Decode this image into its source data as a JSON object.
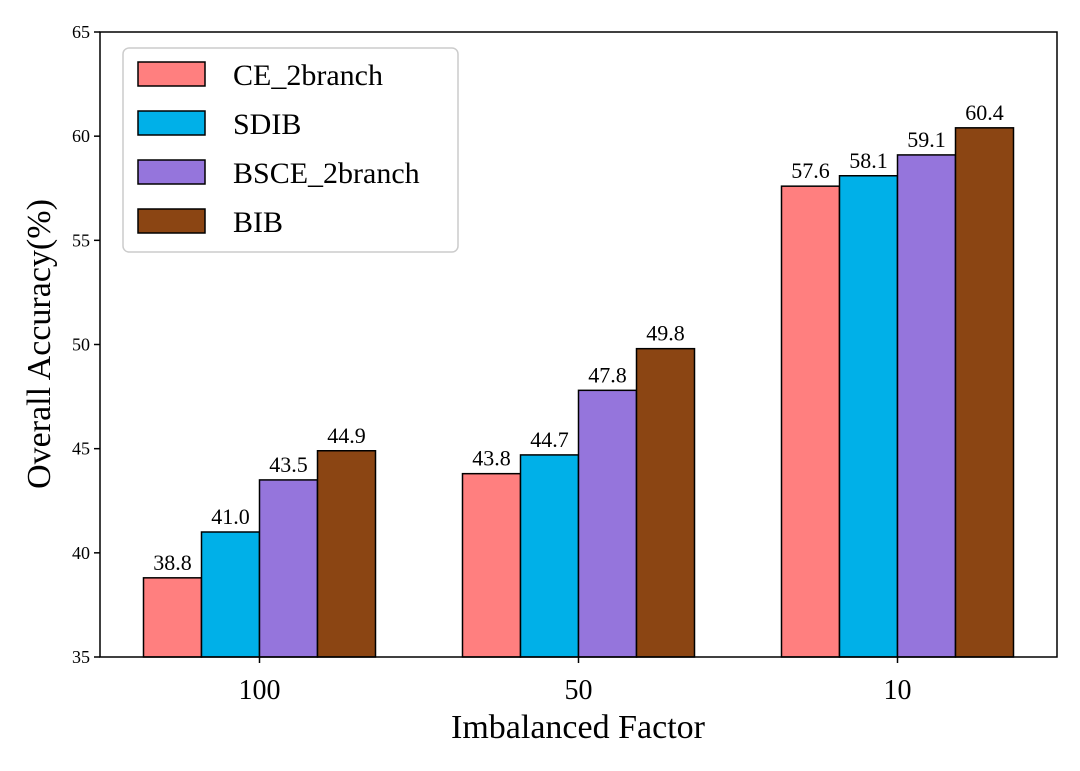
{
  "chart_data": {
    "type": "bar",
    "title": "",
    "xlabel": "Imbalanced Factor",
    "ylabel": "Overall Accuracy(%)",
    "ylim": [
      35,
      65
    ],
    "yticks": [
      35,
      40,
      45,
      50,
      55,
      60,
      65
    ],
    "grid": false,
    "legend_position": "top-left",
    "categories": [
      "100",
      "50",
      "10"
    ],
    "series": [
      {
        "name": "CE_2branch",
        "color": "#FF7F7F",
        "values": [
          38.8,
          43.8,
          57.6
        ],
        "labels": [
          "38.8",
          "43.8",
          "57.6"
        ]
      },
      {
        "name": "SDIB",
        "color": "#00B0E8",
        "values": [
          41.0,
          44.7,
          58.1
        ],
        "labels": [
          "41.0",
          "44.7",
          "58.1"
        ]
      },
      {
        "name": "BSCE_2branch",
        "color": "#9575DC",
        "values": [
          43.5,
          47.8,
          59.1
        ],
        "labels": [
          "43.5",
          "47.8",
          "59.1"
        ]
      },
      {
        "name": "BIB",
        "color": "#8B4513",
        "values": [
          44.9,
          49.8,
          60.4
        ],
        "labels": [
          "44.9",
          "49.8",
          "60.4"
        ]
      }
    ]
  }
}
